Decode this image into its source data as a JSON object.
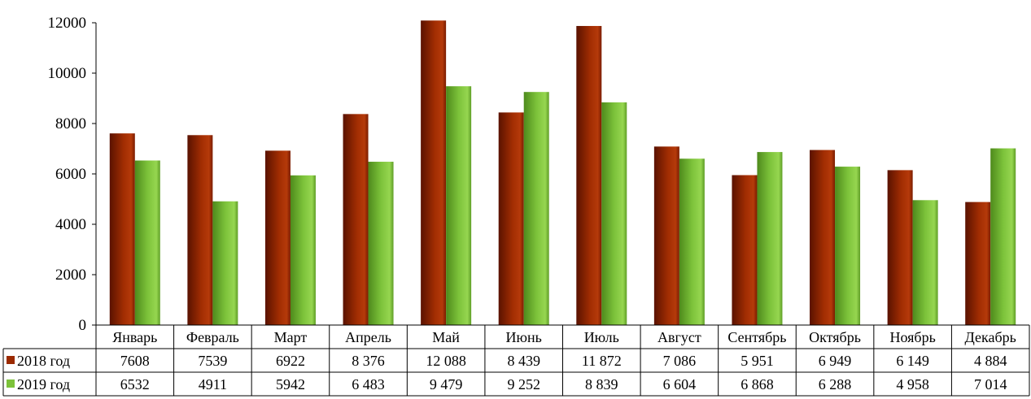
{
  "chart_data": {
    "type": "bar",
    "categories": [
      "Январь",
      "Февраль",
      "Март",
      "Апрель",
      "Май",
      "Июнь",
      "Июль",
      "Август",
      "Сентябрь",
      "Октябрь",
      "Ноябрь",
      "Декабрь"
    ],
    "series": [
      {
        "name": "2018 год",
        "color": "#9b2a00",
        "values": [
          7608,
          7539,
          6922,
          8376,
          12088,
          8439,
          11872,
          7086,
          5951,
          6949,
          6149,
          4884
        ],
        "labels": [
          "7608",
          "7539",
          "6922",
          "8 376",
          "12 088",
          "8 439",
          "11 872",
          "7 086",
          "5 951",
          "6 949",
          "6 149",
          "4 884"
        ]
      },
      {
        "name": "2019 год",
        "color": "#7cc23a",
        "values": [
          6532,
          4911,
          5942,
          6483,
          9479,
          9252,
          8839,
          6604,
          6868,
          6288,
          4958,
          7014
        ],
        "labels": [
          "6532",
          "4911",
          "5942",
          "6 483",
          "9 479",
          "9 252",
          "8 839",
          "6 604",
          "6 868",
          "6 288",
          "4 958",
          "7 014"
        ]
      }
    ],
    "yticks": [
      "0",
      "2000",
      "4000",
      "6000",
      "8000",
      "10000",
      "12000"
    ],
    "ylim": [
      0,
      12000
    ],
    "data_table": true,
    "grid": false
  }
}
